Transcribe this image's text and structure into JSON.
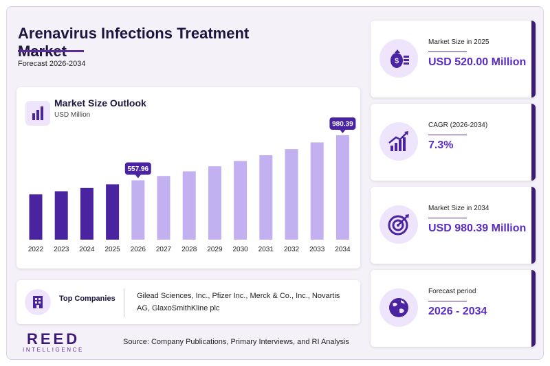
{
  "header": {
    "title": "Arenavirus Infections Treatment Market",
    "subtitle": "Forecast 2026-2034"
  },
  "chart": {
    "title": "Market Size Outlook",
    "unit": "USD Million"
  },
  "chart_data": {
    "type": "bar",
    "categories": [
      "2022",
      "2023",
      "2024",
      "2025",
      "2026",
      "2027",
      "2028",
      "2029",
      "2030",
      "2031",
      "2032",
      "2033",
      "2034"
    ],
    "values": [
      425,
      455,
      485,
      520,
      557.96,
      598,
      642,
      689,
      739,
      793,
      851,
      913,
      980.39
    ],
    "data_labels": [
      {
        "category": "2026",
        "text": "557.96"
      },
      {
        "category": "2034",
        "text": "980.39"
      }
    ],
    "colors": {
      "historical": "#4a23a0",
      "forecast": "#c3b0f0",
      "callout": "#4a23a0"
    },
    "historical_through": "2025",
    "ylim": [
      0,
      1000
    ],
    "grid": false,
    "title": "Market Size Outlook",
    "xlabel": "",
    "ylabel": ""
  },
  "companies": {
    "label": "Top Companies",
    "list": "Gilead Sciences, Inc., Pfizer Inc., Merck & Co., Inc., Novartis AG, GlaxoSmithKline plc"
  },
  "stats": [
    {
      "label": "Market Size in 2025",
      "value": "USD 520.00 Million",
      "icon": "money-bag-icon"
    },
    {
      "label": "CAGR (2026-2034)",
      "value": "7.3%",
      "icon": "growth-chart-icon"
    },
    {
      "label": "Market Size in 2034",
      "value": "USD 980.39 Million",
      "icon": "target-icon"
    },
    {
      "label": "Forecast period",
      "value": "2026 - 2034",
      "icon": "globe-icon"
    }
  ],
  "footer": {
    "logo_main": "REED",
    "logo_sub": "INTELLIGENCE",
    "source": "Source: Company Publications, Primary Interviews, and RI Analysis"
  },
  "colors": {
    "accent": "#5a2dc8",
    "dark": "#3d1a78",
    "light": "#eee4fb"
  }
}
